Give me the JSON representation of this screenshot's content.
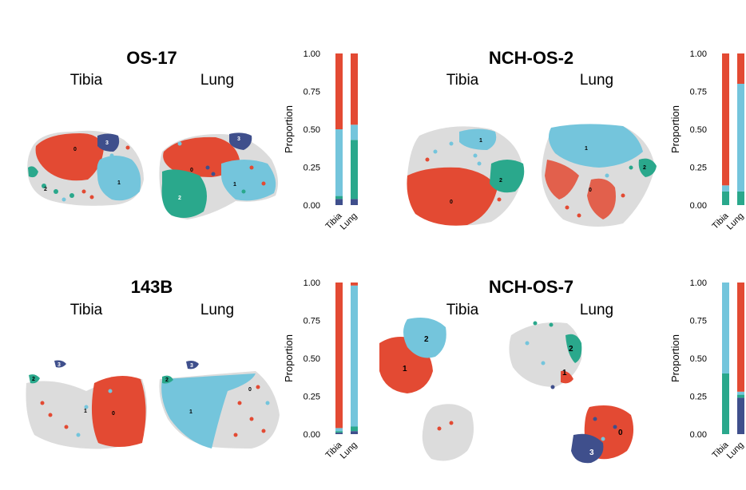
{
  "colors": {
    "c0": "#E34A33",
    "c1": "#74C5DC",
    "c2": "#2AA88C",
    "c3": "#3F4F8C",
    "bg": "#DCDCDC"
  },
  "panels": [
    {
      "title": "OS-17",
      "tissues": [
        "Tibia",
        "Lung"
      ],
      "cluster_labels": [
        "0",
        "1",
        "2",
        "3"
      ]
    },
    {
      "title": "NCH-OS-2",
      "tissues": [
        "Tibia",
        "Lung"
      ],
      "cluster_labels": [
        "0",
        "1",
        "2"
      ]
    },
    {
      "title": "143B",
      "tissues": [
        "Tibia",
        "Lung"
      ],
      "cluster_labels": [
        "0",
        "1",
        "2",
        "3"
      ]
    },
    {
      "title": "NCH-OS-7",
      "tissues": [
        "Tibia",
        "Lung"
      ],
      "cluster_labels": [
        "0",
        "1",
        "2",
        "3"
      ]
    }
  ],
  "chart_data": [
    {
      "type": "bar",
      "stacked": true,
      "panel": "OS-17",
      "categories": [
        "Tibia",
        "Lung"
      ],
      "ylabel": "Proportion",
      "ylim": [
        0,
        1
      ],
      "yticks": [
        "0.00",
        "0.25",
        "0.50",
        "0.75",
        "1.00"
      ],
      "series": [
        {
          "cluster": "3",
          "color": "#3F4F8C",
          "values": [
            0.04,
            0.04
          ]
        },
        {
          "cluster": "2",
          "color": "#2AA88C",
          "values": [
            0.02,
            0.39
          ]
        },
        {
          "cluster": "1",
          "color": "#74C5DC",
          "values": [
            0.44,
            0.1
          ]
        },
        {
          "cluster": "0",
          "color": "#E34A33",
          "values": [
            0.5,
            0.47
          ]
        }
      ]
    },
    {
      "type": "bar",
      "stacked": true,
      "panel": "NCH-OS-2",
      "categories": [
        "Tibia",
        "Lung"
      ],
      "ylabel": "Proportion",
      "ylim": [
        0,
        1
      ],
      "yticks": [
        "0.00",
        "0.25",
        "0.50",
        "0.75",
        "1.00"
      ],
      "series": [
        {
          "cluster": "2",
          "color": "#2AA88C",
          "values": [
            0.09,
            0.09
          ]
        },
        {
          "cluster": "1",
          "color": "#74C5DC",
          "values": [
            0.04,
            0.71
          ]
        },
        {
          "cluster": "0",
          "color": "#E34A33",
          "values": [
            0.87,
            0.2
          ]
        }
      ]
    },
    {
      "type": "bar",
      "stacked": true,
      "panel": "143B",
      "categories": [
        "Tibia",
        "Lung"
      ],
      "ylabel": "Proportion",
      "ylim": [
        0,
        1
      ],
      "yticks": [
        "0.00",
        "0.25",
        "0.50",
        "0.75",
        "1.00"
      ],
      "series": [
        {
          "cluster": "3",
          "color": "#3F4F8C",
          "values": [
            0.01,
            0.02
          ]
        },
        {
          "cluster": "2",
          "color": "#2AA88C",
          "values": [
            0.01,
            0.03
          ]
        },
        {
          "cluster": "1",
          "color": "#74C5DC",
          "values": [
            0.02,
            0.93
          ]
        },
        {
          "cluster": "0",
          "color": "#E34A33",
          "values": [
            0.96,
            0.02
          ]
        }
      ]
    },
    {
      "type": "bar",
      "stacked": true,
      "panel": "NCH-OS-7",
      "categories": [
        "Tibia",
        "Lung"
      ],
      "ylabel": "Proportion",
      "ylim": [
        0,
        1
      ],
      "yticks": [
        "0.00",
        "0.25",
        "0.50",
        "0.75",
        "1.00"
      ],
      "series": [
        {
          "cluster": "3",
          "color": "#3F4F8C",
          "values": [
            0.0,
            0.24
          ]
        },
        {
          "cluster": "2",
          "color": "#2AA88C",
          "values": [
            0.4,
            0.02
          ]
        },
        {
          "cluster": "1",
          "color": "#74C5DC",
          "values": [
            0.6,
            0.02
          ]
        },
        {
          "cluster": "0",
          "color": "#E34A33",
          "values": [
            0.0,
            0.72
          ]
        }
      ]
    }
  ]
}
